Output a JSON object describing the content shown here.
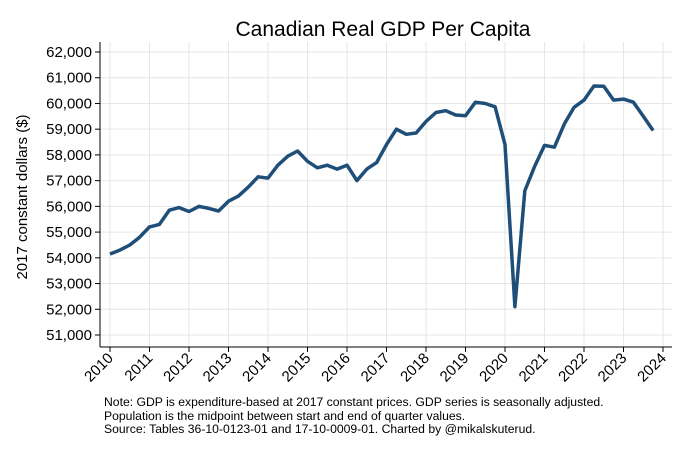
{
  "chart_data": {
    "type": "line",
    "title": "Canadian Real GDP Per Capita",
    "xlabel": "",
    "ylabel": "2017 constant dollars ($)",
    "xlim": [
      2010,
      2024
    ],
    "ylim": [
      51000,
      62000
    ],
    "x_ticks": [
      "2010",
      "2011",
      "2012",
      "2013",
      "2014",
      "2015",
      "2016",
      "2017",
      "2018",
      "2019",
      "2020",
      "2021",
      "2022",
      "2023",
      "2024"
    ],
    "y_ticks": [
      "51,000",
      "52,000",
      "53,000",
      "54,000",
      "55,000",
      "56,000",
      "57,000",
      "58,000",
      "59,000",
      "60,000",
      "61,000",
      "62,000"
    ],
    "grid": true,
    "line_color": "#1f4e79",
    "series": [
      {
        "x": [
          2010.0,
          2010.25,
          2010.5,
          2010.75,
          2011.0,
          2011.25,
          2011.5,
          2011.75,
          2012.0,
          2012.25,
          2012.5,
          2012.75,
          2013.0,
          2013.25,
          2013.5,
          2013.75,
          2014.0,
          2014.25,
          2014.5,
          2014.75,
          2015.0,
          2015.25,
          2015.5,
          2015.75,
          2016.0,
          2016.25,
          2016.5,
          2016.75,
          2017.0,
          2017.25,
          2017.5,
          2017.75,
          2018.0,
          2018.25,
          2018.5,
          2018.75,
          2019.0,
          2019.25,
          2019.5,
          2019.75,
          2020.0,
          2020.25,
          2020.5,
          2020.75,
          2021.0,
          2021.25,
          2021.5,
          2021.75,
          2022.0,
          2022.25,
          2022.5,
          2022.75,
          2023.0,
          2023.25,
          2023.5,
          2023.75
        ],
        "values": [
          54150,
          54300,
          54500,
          54800,
          55200,
          55300,
          55850,
          55950,
          55800,
          56000,
          55920,
          55820,
          56200,
          56400,
          56750,
          57150,
          57100,
          57600,
          57950,
          58150,
          57750,
          57500,
          57600,
          57450,
          57600,
          57000,
          57450,
          57700,
          58400,
          59000,
          58800,
          58850,
          59300,
          59650,
          59720,
          59550,
          59520,
          60050,
          60000,
          59870,
          58400,
          52100,
          56600,
          57550,
          58370,
          58300,
          59200,
          59850,
          60130,
          60680,
          60670,
          60130,
          60170,
          60050,
          59500,
          58950
        ]
      }
    ]
  },
  "notes": [
    "Note: GDP is expenditure-based at 2017 constant prices. GDP series is seasonally adjusted.",
    "Population is the midpoint between start and end of quarter values.",
    "Source: Tables 36-10-0123-01 and 17-10-0009-01. Charted by @mikalskuterud."
  ]
}
